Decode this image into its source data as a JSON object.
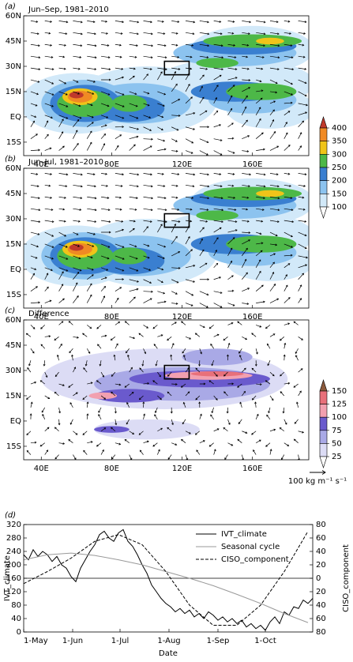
{
  "chart_data": [
    {
      "type": "map",
      "panel": "(a)",
      "title": "Jun–Sep, 1981–2010",
      "field": "ivt",
      "xlim": [
        30,
        192
      ],
      "ylim": [
        -23,
        60
      ],
      "xticks": [
        {
          "value": 40,
          "label": "40E"
        },
        {
          "value": 80,
          "label": "80E"
        },
        {
          "value": 120,
          "label": "120E"
        },
        {
          "value": 160,
          "label": "160E"
        }
      ],
      "yticks": [
        {
          "value": 60,
          "label": "60N"
        },
        {
          "value": 45,
          "label": "45N"
        },
        {
          "value": 30,
          "label": "30N"
        },
        {
          "value": 15,
          "label": "15N"
        },
        {
          "value": 0,
          "label": "EQ"
        },
        {
          "value": -15,
          "label": "15S"
        }
      ],
      "region": {
        "lon": [
          110,
          124
        ],
        "lat": [
          25,
          33
        ]
      },
      "colorbar": {
        "ticks": [
          100,
          150,
          200,
          250,
          300,
          350,
          400
        ],
        "colors": [
          "#ffffff",
          "#d2e9f9",
          "#8cc3ef",
          "#3a7fd0",
          "#4db848",
          "#f0c419",
          "#f08a24",
          "#c0392b"
        ]
      }
    },
    {
      "type": "map",
      "panel": "(b)",
      "title": "Jun–Jul, 1981–2010",
      "field": "ivt",
      "xlim": [
        30,
        192
      ],
      "ylim": [
        -23,
        60
      ],
      "xticks": [
        {
          "value": 40,
          "label": "40E"
        },
        {
          "value": 80,
          "label": "80E"
        },
        {
          "value": 120,
          "label": "120E"
        },
        {
          "value": 160,
          "label": "160E"
        }
      ],
      "yticks": [
        {
          "value": 60,
          "label": "60N"
        },
        {
          "value": 45,
          "label": "45N"
        },
        {
          "value": 30,
          "label": "30N"
        },
        {
          "value": 15,
          "label": "15N"
        },
        {
          "value": 0,
          "label": "EQ"
        },
        {
          "value": -15,
          "label": "15S"
        }
      ],
      "region": {
        "lon": [
          110,
          124
        ],
        "lat": [
          25,
          33
        ]
      }
    },
    {
      "type": "map",
      "panel": "(c)",
      "title": "Difference",
      "field": "diff",
      "xlim": [
        30,
        192
      ],
      "ylim": [
        -23,
        60
      ],
      "xticks": [
        {
          "value": 40,
          "label": "40E"
        },
        {
          "value": 80,
          "label": "80E"
        },
        {
          "value": 120,
          "label": "120E"
        },
        {
          "value": 160,
          "label": "160E"
        }
      ],
      "yticks": [
        {
          "value": 60,
          "label": "60N"
        },
        {
          "value": 45,
          "label": "45N"
        },
        {
          "value": 30,
          "label": "30N"
        },
        {
          "value": 15,
          "label": "15N"
        },
        {
          "value": 0,
          "label": "EQ"
        },
        {
          "value": -15,
          "label": "15S"
        }
      ],
      "region": {
        "lon": [
          110,
          124
        ],
        "lat": [
          25,
          33
        ]
      },
      "colorbar": {
        "ticks": [
          25,
          50,
          75,
          100,
          125,
          150
        ],
        "colors": [
          "#ffffff",
          "#dcdcf5",
          "#a9a9e6",
          "#6a5acd",
          "#f2a0b0",
          "#e8707a",
          "#8b5a3c"
        ]
      },
      "vector_reference": "100 kg m⁻¹ s⁻¹"
    },
    {
      "type": "line",
      "panel": "(d)",
      "x_label": "Date",
      "y_label": "IVT_climate",
      "y2_label": "CISO_component",
      "xlim": [
        0,
        183
      ],
      "ylim": [
        0,
        320
      ],
      "y2lim": [
        -80,
        80
      ],
      "xticks": [
        {
          "value": 0,
          "label": "1-May"
        },
        {
          "value": 31,
          "label": "1-Jun"
        },
        {
          "value": 61,
          "label": "1-Jul"
        },
        {
          "value": 92,
          "label": "1-Aug"
        },
        {
          "value": 123,
          "label": "1-Sep"
        },
        {
          "value": 153,
          "label": "1-Oct"
        }
      ],
      "yticks": [
        0,
        40,
        80,
        120,
        160,
        200,
        240,
        280,
        320
      ],
      "y2ticks": [
        {
          "value": -80,
          "label": "80"
        },
        {
          "value": -60,
          "label": "60"
        },
        {
          "value": -40,
          "label": "40"
        },
        {
          "value": -20,
          "label": "20"
        },
        0,
        20,
        40,
        60,
        80
      ],
      "y2_reference_line": 0,
      "legend": "upper right",
      "series": [
        {
          "name": "IVT_climate",
          "color": "#000000",
          "dash": false,
          "x": [
            0,
            3,
            6,
            9,
            12,
            15,
            18,
            21,
            24,
            27,
            30,
            33,
            36,
            39,
            42,
            45,
            48,
            51,
            54,
            57,
            60,
            63,
            66,
            69,
            72,
            75,
            78,
            81,
            84,
            87,
            90,
            93,
            96,
            99,
            102,
            105,
            108,
            111,
            114,
            117,
            120,
            123,
            126,
            129,
            132,
            135,
            138,
            141,
            144,
            147,
            150,
            153,
            156,
            159,
            162,
            165,
            168,
            171,
            174,
            177,
            180,
            183
          ],
          "values": [
            230,
            215,
            245,
            225,
            240,
            230,
            210,
            225,
            200,
            190,
            165,
            150,
            190,
            215,
            240,
            260,
            290,
            300,
            280,
            270,
            295,
            305,
            270,
            255,
            230,
            200,
            175,
            140,
            120,
            100,
            85,
            75,
            60,
            70,
            55,
            65,
            45,
            55,
            40,
            60,
            50,
            35,
            45,
            30,
            40,
            25,
            35,
            15,
            25,
            10,
            20,
            5,
            30,
            45,
            25,
            60,
            50,
            75,
            70,
            95,
            85,
            100
          ]
        },
        {
          "name": "Seasonal cycle",
          "color": "#999999",
          "dash": false,
          "x": [
            0,
            15,
            30,
            45,
            60,
            75,
            90,
            105,
            120,
            135,
            150,
            165,
            180
          ],
          "values": [
            215,
            230,
            235,
            228,
            215,
            200,
            180,
            160,
            138,
            112,
            85,
            55,
            28
          ]
        },
        {
          "name": "CISO_component",
          "color": "#000000",
          "dash": true,
          "axis": "y2",
          "x": [
            0,
            15,
            30,
            45,
            60,
            75,
            90,
            105,
            120,
            135,
            150,
            165,
            180
          ],
          "values": [
            -8,
            10,
            30,
            55,
            65,
            50,
            10,
            -40,
            -70,
            -70,
            -40,
            10,
            70
          ]
        }
      ]
    }
  ]
}
